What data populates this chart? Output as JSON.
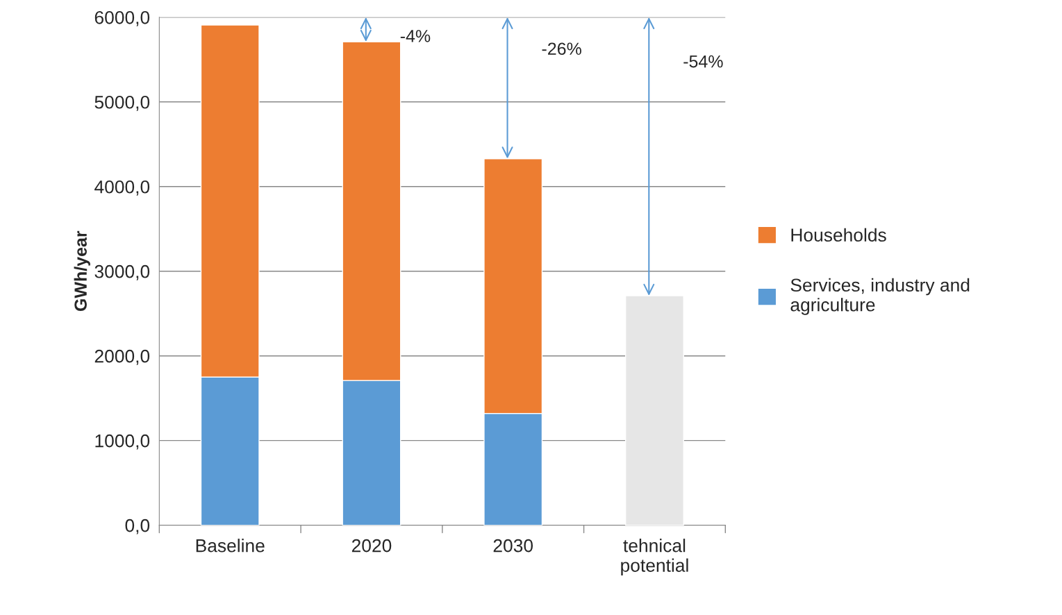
{
  "chart_data": {
    "type": "bar",
    "stacked": true,
    "ylabel": "GWh/year",
    "categories": [
      "Baseline",
      "2020",
      "2030",
      "tehnical potential"
    ],
    "series": [
      {
        "name": "Services, industry and agriculture",
        "color": "#5b9bd5",
        "values": [
          1750,
          1710,
          1320,
          null
        ]
      },
      {
        "name": "Households",
        "color": "#ed7d31",
        "values": [
          4160,
          4000,
          3010,
          null
        ]
      },
      {
        "color": "#e6e6e6",
        "values": [
          null,
          null,
          null,
          2710
        ]
      }
    ],
    "ylim": [
      0,
      6000
    ],
    "yticks": [
      {
        "value": 0,
        "label": "0,0"
      },
      {
        "value": 1000,
        "label": "1000,0"
      },
      {
        "value": 2000,
        "label": "2000,0"
      },
      {
        "value": 3000,
        "label": "3000,0"
      },
      {
        "value": 4000,
        "label": "4000,0"
      },
      {
        "value": 5000,
        "label": "5000,0"
      },
      {
        "value": 6000,
        "label": "6000,0"
      }
    ],
    "grid": "y",
    "legend": "right",
    "annotations": [
      "-4%",
      "-26%",
      "-54%"
    ]
  }
}
